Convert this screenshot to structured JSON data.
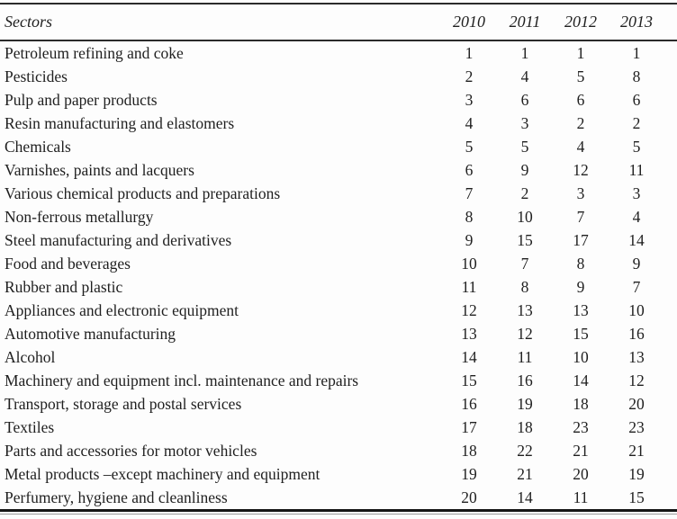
{
  "table": {
    "columns": [
      "Sectors",
      "2010",
      "2011",
      "2012",
      "2013"
    ],
    "rows": [
      {
        "sector": "Petroleum refining and coke",
        "ranks": [
          "1",
          "1",
          "1",
          "1"
        ]
      },
      {
        "sector": "Pesticides",
        "ranks": [
          "2",
          "4",
          "5",
          "8"
        ]
      },
      {
        "sector": "Pulp and paper products",
        "ranks": [
          "3",
          "6",
          "6",
          "6"
        ]
      },
      {
        "sector": "Resin manufacturing and elastomers",
        "ranks": [
          "4",
          "3",
          "2",
          "2"
        ]
      },
      {
        "sector": "Chemicals",
        "ranks": [
          "5",
          "5",
          "4",
          "5"
        ]
      },
      {
        "sector": "Varnishes, paints and lacquers",
        "ranks": [
          "6",
          "9",
          "12",
          "11"
        ]
      },
      {
        "sector": "Various chemical products and preparations",
        "ranks": [
          "7",
          "2",
          "3",
          "3"
        ]
      },
      {
        "sector": "Non-ferrous metallurgy",
        "ranks": [
          "8",
          "10",
          "7",
          "4"
        ]
      },
      {
        "sector": "Steel manufacturing and derivatives",
        "ranks": [
          "9",
          "15",
          "17",
          "14"
        ]
      },
      {
        "sector": "Food and beverages",
        "ranks": [
          "10",
          "7",
          "8",
          "9"
        ]
      },
      {
        "sector": "Rubber and plastic",
        "ranks": [
          "11",
          "8",
          "9",
          "7"
        ]
      },
      {
        "sector": "Appliances and electronic equipment",
        "ranks": [
          "12",
          "13",
          "13",
          "10"
        ]
      },
      {
        "sector": "Automotive manufacturing",
        "ranks": [
          "13",
          "12",
          "15",
          "16"
        ]
      },
      {
        "sector": "Alcohol",
        "ranks": [
          "14",
          "11",
          "10",
          "13"
        ]
      },
      {
        "sector": "Machinery and equipment incl. maintenance and repairs",
        "ranks": [
          "15",
          "16",
          "14",
          "12"
        ]
      },
      {
        "sector": "Transport, storage and postal services",
        "ranks": [
          "16",
          "19",
          "18",
          "20"
        ]
      },
      {
        "sector": "Textiles",
        "ranks": [
          "17",
          "18",
          "23",
          "23"
        ]
      },
      {
        "sector": "Parts and accessories for motor vehicles",
        "ranks": [
          "18",
          "22",
          "21",
          "21"
        ]
      },
      {
        "sector": "Metal products –except machinery and equipment",
        "ranks": [
          "19",
          "21",
          "20",
          "19"
        ]
      },
      {
        "sector": "Perfumery, hygiene and cleanliness",
        "ranks": [
          "20",
          "14",
          "11",
          "15"
        ]
      }
    ],
    "colors": {
      "text": "#1f1f1f",
      "rule": "#2b2b2b",
      "background": "#fdfdfd"
    }
  }
}
